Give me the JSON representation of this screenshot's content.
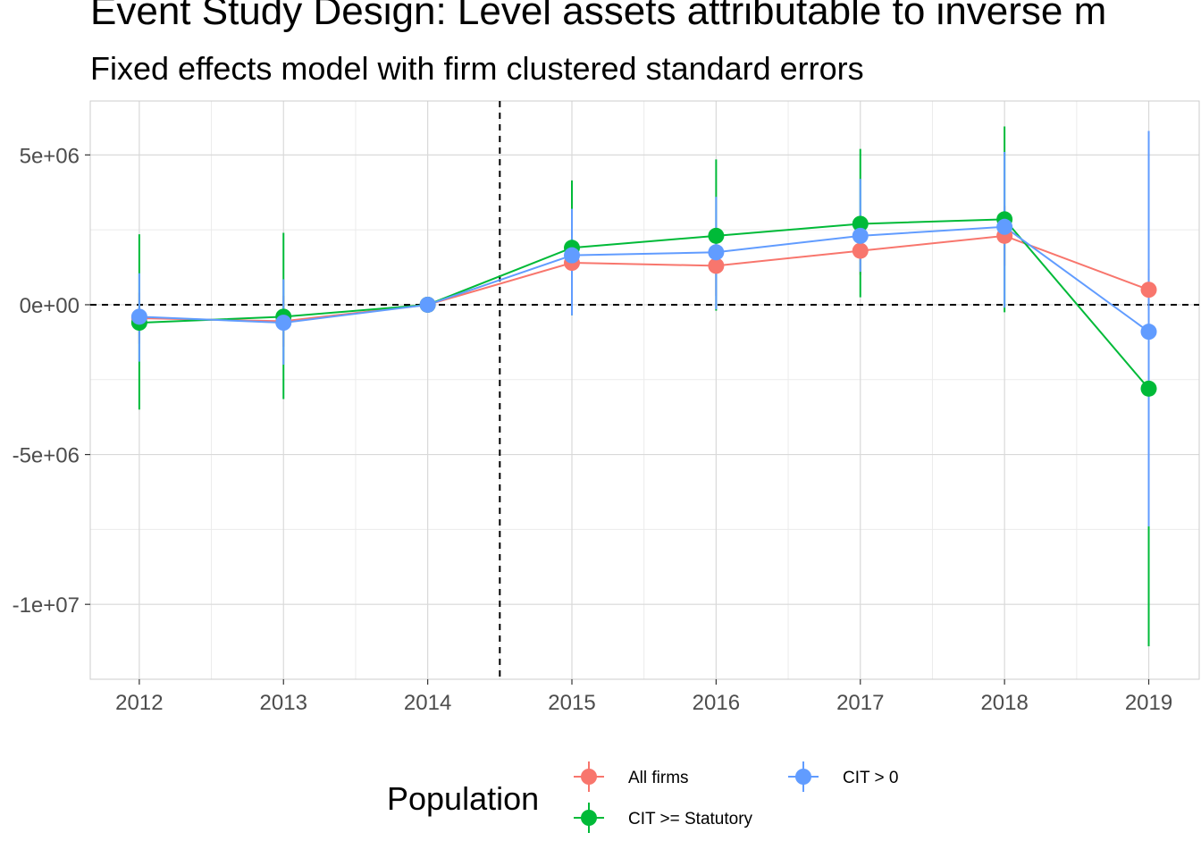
{
  "chart_data": {
    "type": "line",
    "title": "Event Study Design: Level assets attributable to inverse m",
    "subtitle": "Fixed effects model with firm clustered standard errors",
    "xlabel": "",
    "ylabel": "",
    "x": [
      2012,
      2013,
      2014,
      2015,
      2016,
      2017,
      2018,
      2019
    ],
    "x_tick_labels": [
      "2012",
      "2013",
      "2014",
      "2015",
      "2016",
      "2017",
      "2018",
      "2019"
    ],
    "y_tick_values": [
      5000000,
      0,
      -5000000,
      -10000000
    ],
    "y_tick_labels": [
      "5e+06",
      "0e+00",
      "-5e+06",
      "-1e+07"
    ],
    "xlim": [
      2011.66,
      2019.35
    ],
    "ylim": [
      -12500000,
      6800000
    ],
    "grid": true,
    "reference_lines": {
      "vertical_x": 2014.5,
      "horizontal_y": 0,
      "style": "dashed"
    },
    "legend": {
      "title": "Population",
      "position": "bottom"
    },
    "series": [
      {
        "name": "All firms",
        "color": "#F8766D",
        "values": [
          -450000,
          -550000,
          0,
          1400000,
          1300000,
          1800000,
          2300000,
          500000
        ],
        "lower": [
          -1300000,
          -1400000,
          0,
          500000,
          300000,
          1000000,
          1300000,
          -200000
        ],
        "upper": [
          400000,
          300000,
          0,
          2300000,
          2300000,
          2600000,
          3300000,
          1200000
        ]
      },
      {
        "name": "CIT >= Statutory",
        "color": "#00BA38",
        "values": [
          -600000,
          -400000,
          0,
          1900000,
          2300000,
          2700000,
          2850000,
          -2800000
        ],
        "lower": [
          -3500000,
          -3150000,
          0,
          -350000,
          -200000,
          250000,
          -250000,
          -11400000
        ],
        "upper": [
          2350000,
          2400000,
          0,
          4150000,
          4850000,
          5200000,
          5950000,
          -7400000
        ]
      },
      {
        "name": "CIT > 0",
        "color": "#619CFF",
        "values": [
          -400000,
          -600000,
          0,
          1650000,
          1750000,
          2300000,
          2600000,
          -900000
        ],
        "lower": [
          -1900000,
          -2000000,
          0,
          -350000,
          -150000,
          1100000,
          -100000,
          -7400000
        ],
        "upper": [
          1050000,
          850000,
          0,
          3200000,
          3600000,
          4200000,
          5100000,
          5800000
        ]
      }
    ]
  }
}
